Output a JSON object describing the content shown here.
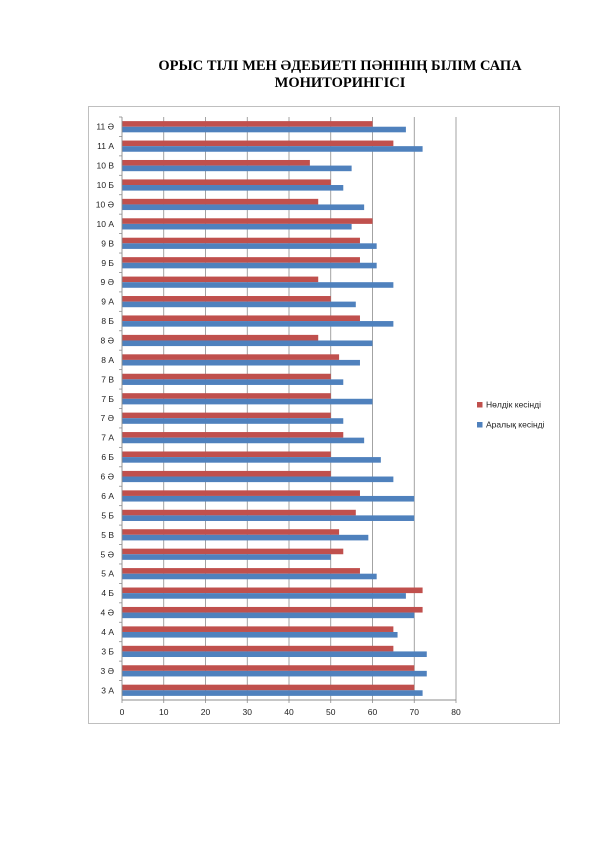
{
  "chart_data": {
    "type": "bar",
    "orientation": "horizontal",
    "title_lines": [
      "ОРЫС ТІЛІ МЕН ӘДЕБИЕТІ ПӘНІНІҢ БІЛІМ САПА",
      "МОНИТОРИНГІСІ"
    ],
    "categories": [
      "3 А",
      "3 Ә",
      "3 Б",
      "4 А",
      "4 Ә",
      "4 Б",
      "5 А",
      "5 Ә",
      "5 В",
      "5 Б",
      "6 А",
      "6 Ә",
      "6 Б",
      "7 А",
      "7 Ә",
      "7 Б",
      "7 В",
      "8 А",
      "8 Ә",
      "8 Б",
      "9 А",
      "9 Ә",
      "9 Б",
      "9 В",
      "10 А",
      "10 Ә",
      "10 Б",
      "10 В",
      "11 А",
      "11 Ә"
    ],
    "series": [
      {
        "name": "Нөлдік кесінді",
        "color": "#c0504d",
        "values": [
          70,
          70,
          65,
          65,
          72,
          72,
          57,
          53,
          52,
          56,
          57,
          50,
          50,
          53,
          50,
          50,
          50,
          52,
          47,
          57,
          50,
          47,
          57,
          57,
          60,
          47,
          50,
          45,
          65,
          60
        ]
      },
      {
        "name": "Аралық кесінді",
        "color": "#4f81bd",
        "values": [
          72,
          73,
          73,
          66,
          70,
          68,
          61,
          50,
          59,
          70,
          70,
          65,
          62,
          58,
          53,
          60,
          53,
          57,
          60,
          65,
          56,
          65,
          61,
          61,
          55,
          58,
          53,
          55,
          72,
          68
        ]
      }
    ],
    "xlim": [
      0,
      80
    ],
    "x_ticks": [
      "0",
      "10",
      "20",
      "30",
      "40",
      "50",
      "60",
      "70",
      "80"
    ],
    "grid": true,
    "legend_position": "right"
  }
}
